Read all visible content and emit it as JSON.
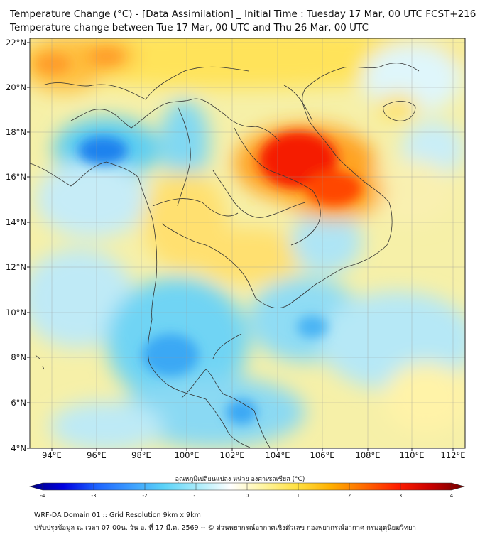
{
  "title_line1": "Temperature Change (°C) - [Data Assimilation] _ Initial Time : Tuesday 17 Mar, 00 UTC FCST+216",
  "title_line2": "Temperature change between Tue 17 Mar, 00 UTC and Thu 26 Mar, 00 UTC",
  "map": {
    "lon_ticks": [
      "94°E",
      "96°E",
      "98°E",
      "100°E",
      "102°E",
      "104°E",
      "106°E",
      "108°E",
      "110°E",
      "112°E"
    ],
    "lat_ticks": [
      "22°N",
      "20°N",
      "18°N",
      "16°N",
      "14°N",
      "12°N",
      "10°N",
      "8°N",
      "6°N",
      "4°N"
    ],
    "lon_range": [
      93,
      112.3
    ],
    "lat_range": [
      4,
      22.2
    ],
    "grid": true
  },
  "colorbar": {
    "title": "อุณหภูมิเปลี่ยนแปลง หน่วย องศาเซลเซียส (°C)",
    "ticks": [
      "-4",
      "-3",
      "-2",
      "-1",
      "0",
      "1",
      "2",
      "3",
      "4"
    ],
    "range": [
      -4,
      4
    ],
    "colors": [
      "#000080",
      "#0000e0",
      "#1e64ff",
      "#3c9cff",
      "#5ad2f8",
      "#a8ecfb",
      "#ffffff",
      "#fff5a0",
      "#ffe040",
      "#ffb000",
      "#ff6a00",
      "#ff1e00",
      "#c80000",
      "#6e0000"
    ]
  },
  "footer_line1": "WRF-DA Domain 01 :: Grid Resolution 9km x 9km",
  "footer_line2": "ปรับปรุงข้อมูล ณ เวลา 07:00น. วัน อ. ที่ 17 มี.ค. 2569 -- © ส่วนพยากรณ์อากาศเชิงตัวเลข กองพยากรณ์อากาศ กรมอุตุนิยมวิทยา"
}
